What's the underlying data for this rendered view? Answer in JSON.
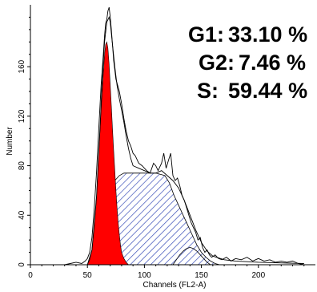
{
  "stats": {
    "g1_label": "G1:",
    "g1_value": "33.10 %",
    "g2_label": "G2:",
    "g2_value": "7.46 %",
    "s_label": "S:",
    "s_value": "59.44 %"
  },
  "chart_data": {
    "type": "area",
    "xlabel": "Channels (FL2-A)",
    "ylabel": "Number",
    "xlim": [
      0,
      250
    ],
    "ylim": [
      0,
      210
    ],
    "x_ticks": [
      0,
      50,
      100,
      150,
      200
    ],
    "y_ticks": [
      0,
      40,
      80,
      120,
      160
    ],
    "grid": false,
    "colors": {
      "g1_fill": "#ff0000",
      "s_hatch": "#3a4fb8",
      "outline": "#000000"
    },
    "series": [
      {
        "type": "line",
        "points": [
          [
            30,
            0
          ],
          [
            35,
            1
          ],
          [
            40,
            2
          ],
          [
            45,
            1
          ],
          [
            48,
            3
          ],
          [
            50,
            5
          ],
          [
            52,
            10
          ],
          [
            54,
            22
          ],
          [
            56,
            45
          ],
          [
            58,
            75
          ],
          [
            60,
            110
          ],
          [
            62,
            145
          ],
          [
            64,
            170
          ],
          [
            65,
            185
          ],
          [
            66,
            195
          ],
          [
            67,
            198
          ],
          [
            68,
            205
          ],
          [
            69,
            208
          ],
          [
            70,
            200
          ],
          [
            71,
            190
          ],
          [
            72,
            178
          ],
          [
            73,
            165
          ],
          [
            75,
            150
          ],
          [
            78,
            140
          ],
          [
            80,
            130
          ],
          [
            82,
            118
          ],
          [
            84,
            108
          ],
          [
            86,
            100
          ],
          [
            88,
            96
          ],
          [
            90,
            90
          ],
          [
            92,
            88
          ],
          [
            95,
            82
          ],
          [
            98,
            80
          ],
          [
            100,
            78
          ],
          [
            102,
            76
          ],
          [
            105,
            74
          ],
          [
            108,
            82
          ],
          [
            110,
            80
          ],
          [
            112,
            76
          ],
          [
            115,
            82
          ],
          [
            117,
            90
          ],
          [
            119,
            78
          ],
          [
            121,
            84
          ],
          [
            123,
            90
          ],
          [
            125,
            72
          ],
          [
            127,
            68
          ],
          [
            129,
            70
          ],
          [
            131,
            64
          ],
          [
            133,
            56
          ],
          [
            135,
            52
          ],
          [
            137,
            46
          ],
          [
            139,
            40
          ],
          [
            141,
            34
          ],
          [
            143,
            30
          ],
          [
            145,
            26
          ],
          [
            147,
            20
          ],
          [
            149,
            22
          ],
          [
            151,
            14
          ],
          [
            153,
            10
          ],
          [
            155,
            12
          ],
          [
            157,
            8
          ],
          [
            159,
            6
          ],
          [
            162,
            8
          ],
          [
            165,
            5
          ],
          [
            168,
            4
          ],
          [
            172,
            6
          ],
          [
            176,
            3
          ],
          [
            180,
            5
          ],
          [
            185,
            4
          ],
          [
            190,
            6
          ],
          [
            195,
            3
          ],
          [
            200,
            5
          ],
          [
            205,
            3
          ],
          [
            210,
            4
          ],
          [
            215,
            2
          ],
          [
            220,
            3
          ],
          [
            225,
            2
          ],
          [
            230,
            3
          ],
          [
            235,
            1
          ],
          [
            240,
            0
          ]
        ]
      },
      {
        "type": "line",
        "points": [
          [
            50,
            0
          ],
          [
            54,
            12
          ],
          [
            58,
            55
          ],
          [
            61,
            110
          ],
          [
            63,
            150
          ],
          [
            65,
            180
          ],
          [
            67,
            196
          ],
          [
            69,
            200
          ],
          [
            70,
            196
          ],
          [
            72,
            178
          ],
          [
            74,
            160
          ],
          [
            76,
            145
          ],
          [
            78,
            134
          ],
          [
            80,
            125
          ],
          [
            82,
            115
          ],
          [
            84,
            104
          ],
          [
            86,
            94
          ],
          [
            88,
            86
          ],
          [
            90,
            80
          ],
          [
            95,
            78
          ],
          [
            100,
            76
          ],
          [
            105,
            74
          ],
          [
            110,
            74
          ],
          [
            115,
            76
          ],
          [
            120,
            72
          ],
          [
            125,
            68
          ],
          [
            130,
            62
          ],
          [
            135,
            52
          ],
          [
            140,
            40
          ],
          [
            145,
            28
          ],
          [
            150,
            18
          ],
          [
            155,
            11
          ],
          [
            160,
            7
          ],
          [
            170,
            4
          ],
          [
            180,
            3
          ],
          [
            200,
            2
          ],
          [
            240,
            1
          ]
        ]
      },
      {
        "type": "area",
        "name": "G1",
        "points": [
          [
            50,
            0
          ],
          [
            52,
            4
          ],
          [
            54,
            12
          ],
          [
            56,
            30
          ],
          [
            58,
            55
          ],
          [
            60,
            90
          ],
          [
            62,
            125
          ],
          [
            64,
            155
          ],
          [
            65,
            170
          ],
          [
            66,
            178
          ],
          [
            67,
            180
          ],
          [
            68,
            175
          ],
          [
            69,
            162
          ],
          [
            70,
            145
          ],
          [
            71,
            128
          ],
          [
            72,
            110
          ],
          [
            73,
            92
          ],
          [
            74,
            76
          ],
          [
            75,
            60
          ],
          [
            76,
            46
          ],
          [
            77,
            34
          ],
          [
            78,
            24
          ],
          [
            79,
            16
          ],
          [
            80,
            10
          ],
          [
            82,
            5
          ],
          [
            84,
            2
          ],
          [
            86,
            0
          ]
        ]
      },
      {
        "type": "area",
        "name": "S",
        "points": [
          [
            58,
            0
          ],
          [
            62,
            18
          ],
          [
            66,
            38
          ],
          [
            70,
            58
          ],
          [
            74,
            68
          ],
          [
            78,
            72
          ],
          [
            82,
            74
          ],
          [
            86,
            74
          ],
          [
            90,
            74
          ],
          [
            100,
            74
          ],
          [
            110,
            74
          ],
          [
            118,
            72
          ],
          [
            122,
            66
          ],
          [
            126,
            56
          ],
          [
            130,
            48
          ],
          [
            134,
            40
          ],
          [
            138,
            32
          ],
          [
            142,
            24
          ],
          [
            146,
            16
          ],
          [
            150,
            10
          ],
          [
            154,
            6
          ],
          [
            158,
            3
          ],
          [
            162,
            1
          ],
          [
            166,
            0
          ]
        ]
      },
      {
        "type": "area",
        "name": "G2",
        "points": [
          [
            125,
            0
          ],
          [
            128,
            4
          ],
          [
            131,
            8
          ],
          [
            134,
            11
          ],
          [
            137,
            13
          ],
          [
            140,
            14
          ],
          [
            143,
            13
          ],
          [
            146,
            11
          ],
          [
            149,
            8
          ],
          [
            152,
            5
          ],
          [
            155,
            2
          ],
          [
            158,
            0
          ]
        ]
      }
    ]
  }
}
